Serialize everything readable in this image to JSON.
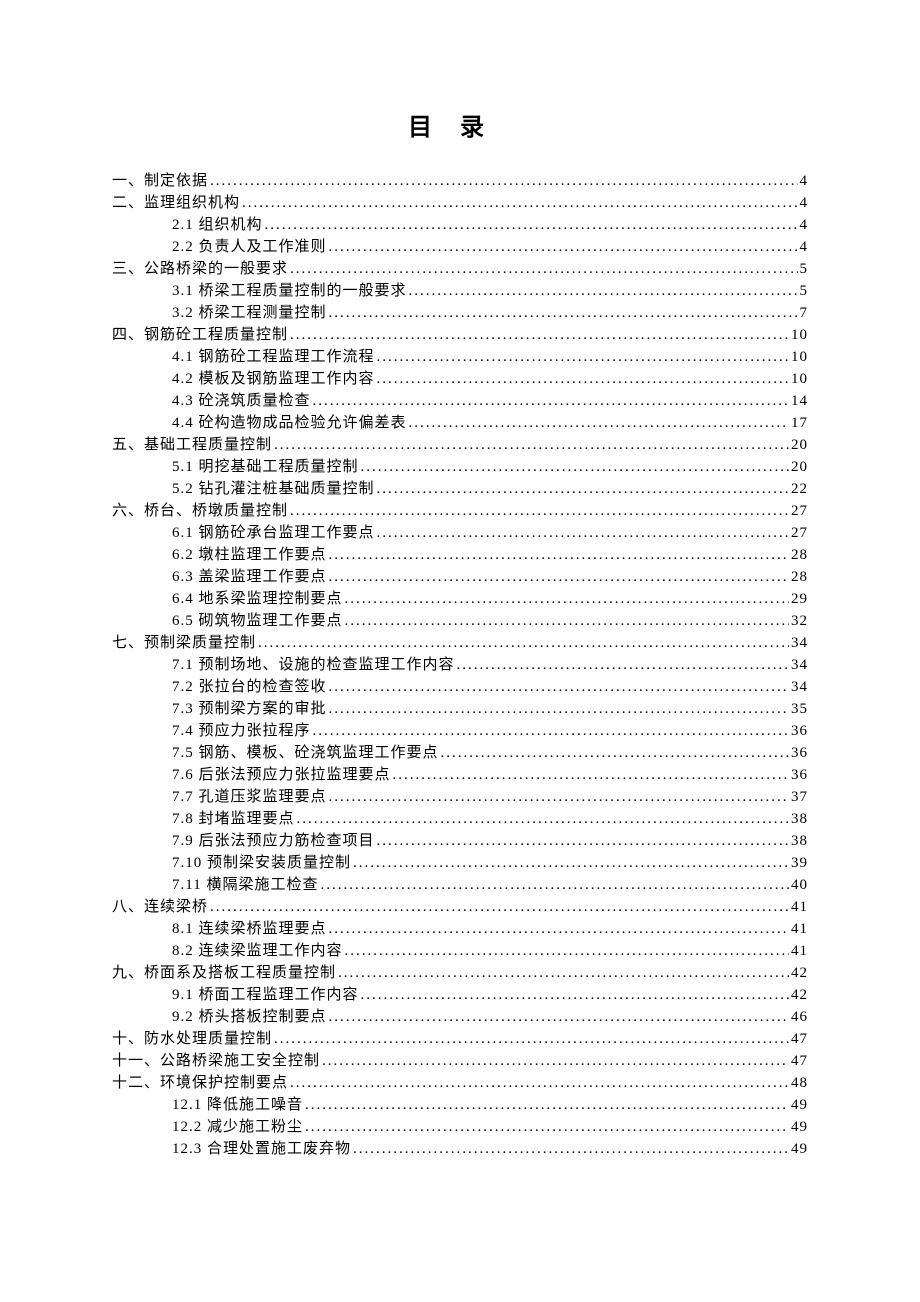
{
  "title": "目录",
  "entries": [
    {
      "level": 1,
      "label": "一、制定依据",
      "page": "4"
    },
    {
      "level": 1,
      "label": "二、监理组织机构",
      "page": "4"
    },
    {
      "level": 2,
      "label": "2.1 组织机构",
      "page": "4"
    },
    {
      "level": 2,
      "label": "2.2 负责人及工作准则",
      "page": "4"
    },
    {
      "level": 1,
      "label": "三、公路桥梁的一般要求",
      "page": "5"
    },
    {
      "level": 2,
      "label": "3.1 桥梁工程质量控制的一般要求",
      "page": "5"
    },
    {
      "level": 2,
      "label": "3.2 桥梁工程测量控制",
      "page": "7"
    },
    {
      "level": 1,
      "label": "四、钢筋砼工程质量控制",
      "page": "10"
    },
    {
      "level": 2,
      "label": "4.1 钢筋砼工程监理工作流程",
      "page": "10"
    },
    {
      "level": 2,
      "label": "4.2 模板及钢筋监理工作内容",
      "page": "10"
    },
    {
      "level": 2,
      "label": "4.3 砼浇筑质量检查",
      "page": "14"
    },
    {
      "level": 2,
      "label": "4.4 砼构造物成品检验允许偏差表",
      "page": "17"
    },
    {
      "level": 1,
      "label": "五、基础工程质量控制",
      "page": "20"
    },
    {
      "level": 2,
      "label": "5.1 明挖基础工程质量控制",
      "page": "20"
    },
    {
      "level": 2,
      "label": "5.2 钻孔灌注桩基础质量控制",
      "page": "22"
    },
    {
      "level": 1,
      "label": "六、桥台、桥墩质量控制",
      "page": "27"
    },
    {
      "level": 2,
      "label": "6.1 钢筋砼承台监理工作要点",
      "page": "27"
    },
    {
      "level": 2,
      "label": "6.2 墩柱监理工作要点",
      "page": "28"
    },
    {
      "level": 2,
      "label": "6.3 盖梁监理工作要点",
      "page": "28"
    },
    {
      "level": 2,
      "label": "6.4 地系梁监理控制要点",
      "page": "29"
    },
    {
      "level": 2,
      "label": "6.5 砌筑物监理工作要点",
      "page": "32"
    },
    {
      "level": 1,
      "label": "七、预制梁质量控制",
      "page": "34"
    },
    {
      "level": 2,
      "label": "7.1 预制场地、设施的检查监理工作内容",
      "page": "34"
    },
    {
      "level": 2,
      "label": "7.2 张拉台的检查签收",
      "page": "34"
    },
    {
      "level": 2,
      "label": "7.3 预制梁方案的审批",
      "page": "35"
    },
    {
      "level": 2,
      "label": "7.4 预应力张拉程序",
      "page": "36"
    },
    {
      "level": 2,
      "label": "7.5 钢筋、模板、砼浇筑监理工作要点",
      "page": "36"
    },
    {
      "level": 2,
      "label": "7.6 后张法预应力张拉监理要点",
      "page": "36"
    },
    {
      "level": 2,
      "label": "7.7 孔道压浆监理要点",
      "page": "37"
    },
    {
      "level": 2,
      "label": "7.8 封堵监理要点",
      "page": "38"
    },
    {
      "level": 2,
      "label": "7.9 后张法预应力筋检查项目",
      "page": "38"
    },
    {
      "level": 2,
      "label": "7.10 预制梁安装质量控制",
      "page": "39"
    },
    {
      "level": 2,
      "label": "7.11 横隔梁施工检查",
      "page": "40"
    },
    {
      "level": 1,
      "label": "八、连续梁桥",
      "page": "41"
    },
    {
      "level": 2,
      "label": "8.1 连续梁桥监理要点",
      "page": "41"
    },
    {
      "level": 2,
      "label": "8.2 连续梁监理工作内容",
      "page": "41"
    },
    {
      "level": 1,
      "label": "九、桥面系及搭板工程质量控制",
      "page": "42"
    },
    {
      "level": 2,
      "label": "9.1 桥面工程监理工作内容",
      "page": "42"
    },
    {
      "level": 2,
      "label": "9.2 桥头搭板控制要点",
      "page": "46"
    },
    {
      "level": 1,
      "label": "十、防水处理质量控制",
      "page": "47"
    },
    {
      "level": 1,
      "label": "十一、公路桥梁施工安全控制",
      "page": "47"
    },
    {
      "level": 1,
      "label": "十二、环境保护控制要点",
      "page": "48"
    },
    {
      "level": 2,
      "label": "12.1 降低施工噪音",
      "page": "49"
    },
    {
      "level": 2,
      "label": "12.2 减少施工粉尘",
      "page": "49"
    },
    {
      "level": 2,
      "label": "12.3 合理处置施工废弃物",
      "page": "49"
    }
  ]
}
